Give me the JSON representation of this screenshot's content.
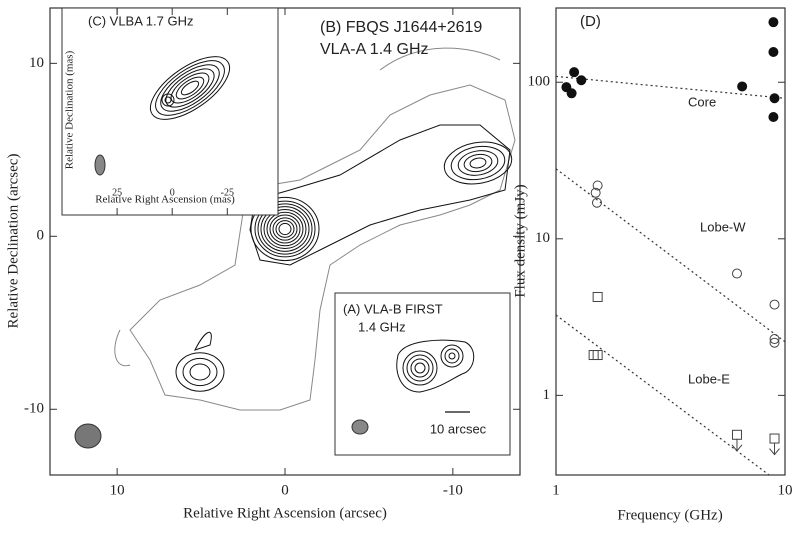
{
  "chart_data": [
    {
      "type": "contour",
      "title": "(B) FBQS J1644+2619",
      "subtitle": "VLA-A   1.4 GHz",
      "xlabel": "Relative Right Ascension (arcsec)",
      "ylabel": "Relative Declination (arcsec)",
      "xlim": [
        14,
        -14
      ],
      "ylim": [
        -13.8,
        13.2
      ],
      "xticks": [
        10,
        0,
        -10
      ],
      "yticks": [
        10,
        0,
        -10
      ]
    },
    {
      "type": "contour",
      "title": "(C) VLBA  1.7 GHz",
      "xlabel": "Relative Right Ascension (mas)",
      "ylabel": "Relative Declination (mas)",
      "xlim": [
        50,
        -48
      ],
      "xticks": [
        25,
        0,
        -25
      ]
    },
    {
      "type": "contour",
      "title": "(A) VLA-B  FIRST",
      "subtitle": "1.4 GHz",
      "annotation": "10 arcsec"
    },
    {
      "type": "scatter",
      "title": "(D)",
      "xlabel": "Frequency (GHz)",
      "ylabel": "Flux density (mJy)",
      "xlog": true,
      "ylog": true,
      "xlim": [
        1,
        10
      ],
      "ylim": [
        0.31,
        298
      ],
      "xticks": [
        1,
        10
      ],
      "yticks": [
        1,
        10,
        100
      ],
      "series": [
        {
          "name": "Core",
          "marker": "filled-circle",
          "color": "#111",
          "x": [
            1.11,
            1.17,
            1.2,
            1.29,
            6.5,
            8.9,
            8.9,
            9.0,
            8.9
          ],
          "values": [
            93,
            85,
            116,
            103,
            94,
            242,
            156,
            79,
            60
          ]
        },
        {
          "name": "Lobe-W",
          "marker": "open-circle",
          "color": "#444",
          "x": [
            1.49,
            1.52,
            1.51,
            6.17,
            9.0,
            9.0,
            9.0
          ],
          "values": [
            19.7,
            21.9,
            17,
            6.0,
            3.8,
            2.29,
            2.17
          ]
        },
        {
          "name": "Lobe-E",
          "marker": "open-square",
          "color": "#444",
          "x": [
            1.52,
            1.46,
            1.52,
            6.17,
            9.0
          ],
          "values": [
            4.25,
            1.81,
            1.81,
            0.56,
            0.53
          ],
          "upper_limit": [
            false,
            false,
            false,
            true,
            true
          ]
        }
      ],
      "fits": [
        {
          "x": [
            1,
            10
          ],
          "values": [
            109,
            79
          ]
        },
        {
          "x": [
            1,
            10
          ],
          "values": [
            28,
            2.2
          ]
        },
        {
          "x": [
            1,
            10
          ],
          "values": [
            3.26,
            0.26
          ]
        }
      ]
    }
  ]
}
